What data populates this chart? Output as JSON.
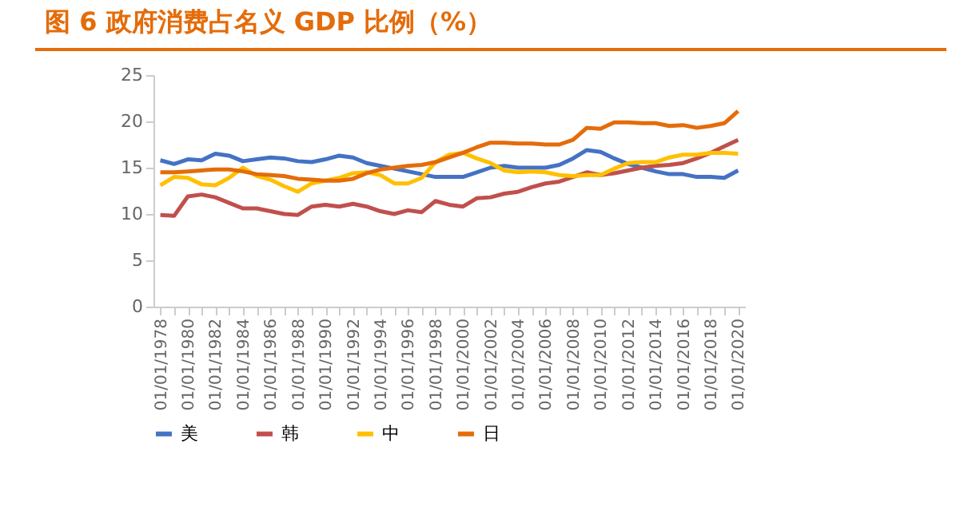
{
  "chart_data": {
    "type": "line",
    "title": "图 6  政府消费占名义 GDP 比例（%）",
    "categories": [
      "01/01/1978",
      null,
      "01/01/1980",
      null,
      "01/01/1982",
      null,
      "01/01/1984",
      null,
      "01/01/1986",
      null,
      "01/01/1988",
      null,
      "01/01/1990",
      null,
      "01/01/1992",
      null,
      "01/01/1994",
      null,
      "01/01/1996",
      null,
      "01/01/1998",
      null,
      "01/01/2000",
      null,
      "01/01/2002",
      null,
      "01/01/2004",
      null,
      "01/01/2006",
      null,
      "01/01/2008",
      null,
      "01/01/2010",
      null,
      "01/01/2012",
      null,
      "01/01/2014",
      null,
      "01/01/2016",
      null,
      "01/01/2018",
      null,
      "01/01/2020"
    ],
    "series": [
      {
        "name": "美",
        "color": "#4472c4",
        "values": [
          15.8,
          15.4,
          15.9,
          15.8,
          16.5,
          16.3,
          15.7,
          15.9,
          16.1,
          16.0,
          15.7,
          15.6,
          15.9,
          16.3,
          16.1,
          15.5,
          15.2,
          14.9,
          14.6,
          14.3,
          14.0,
          14.0,
          14.0,
          14.5,
          15.0,
          15.2,
          15.0,
          15.0,
          15.0,
          15.3,
          16.0,
          16.9,
          16.7,
          16.0,
          15.4,
          15.0,
          14.6,
          14.3,
          14.3,
          14.0,
          14.0,
          13.9,
          14.7
        ]
      },
      {
        "name": "韩",
        "color": "#c0504d",
        "values": [
          9.9,
          9.8,
          11.9,
          12.1,
          11.8,
          11.2,
          10.6,
          10.6,
          10.3,
          10.0,
          9.9,
          10.8,
          11.0,
          10.8,
          11.1,
          10.8,
          10.3,
          10.0,
          10.4,
          10.2,
          11.4,
          11.0,
          10.8,
          11.7,
          11.8,
          12.2,
          12.4,
          12.9,
          13.3,
          13.5,
          14.0,
          14.5,
          14.2,
          14.4,
          14.7,
          15.0,
          15.2,
          15.3,
          15.5,
          16.0,
          16.6,
          17.3,
          18.0
        ]
      },
      {
        "name": "中",
        "color": "#ffc000",
        "values": [
          13.1,
          14.0,
          13.9,
          13.2,
          13.1,
          13.9,
          15.0,
          14.1,
          13.7,
          13.0,
          12.4,
          13.3,
          13.6,
          13.9,
          14.4,
          14.5,
          14.2,
          13.3,
          13.3,
          13.9,
          15.6,
          16.4,
          16.6,
          16.0,
          15.5,
          14.7,
          14.5,
          14.6,
          14.5,
          14.2,
          14.1,
          14.2,
          14.2,
          14.9,
          15.5,
          15.6,
          15.6,
          16.1,
          16.4,
          16.4,
          16.6,
          16.6,
          16.5
        ]
      },
      {
        "name": "日",
        "color": "#e46c0a",
        "values": [
          14.5,
          14.5,
          14.6,
          14.7,
          14.8,
          14.8,
          14.6,
          14.3,
          14.2,
          14.1,
          13.8,
          13.7,
          13.6,
          13.6,
          13.8,
          14.4,
          14.8,
          15.0,
          15.2,
          15.3,
          15.6,
          16.1,
          16.6,
          17.2,
          17.7,
          17.7,
          17.6,
          17.6,
          17.5,
          17.5,
          18.0,
          19.3,
          19.2,
          19.9,
          19.9,
          19.8,
          19.8,
          19.5,
          19.6,
          19.3,
          19.5,
          19.8,
          21.1
        ]
      }
    ],
    "ylim": [
      0,
      25
    ],
    "yticks": [
      0,
      5,
      10,
      15,
      20,
      25
    ],
    "grid": false,
    "legend": "bottom",
    "marker": "none",
    "line_style": "solid"
  }
}
